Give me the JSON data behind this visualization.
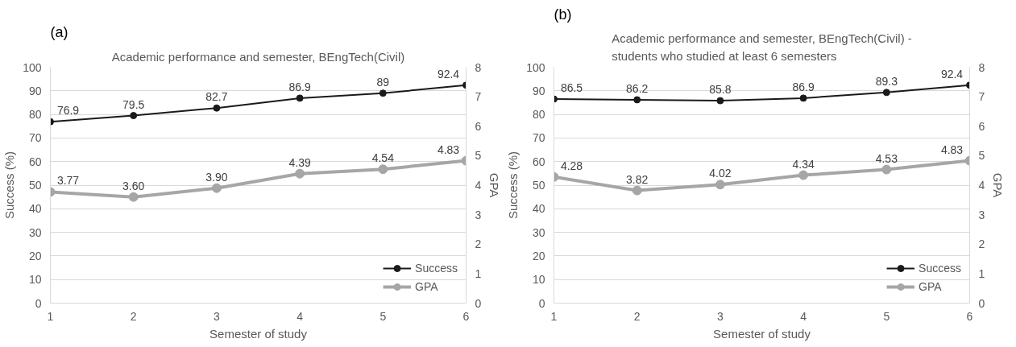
{
  "chart_data": [
    {
      "type": "line",
      "title": "Academic performance and semester, BEngTech(Civil)",
      "xlabel": "Semester of study",
      "ylabel": "Success (%)",
      "y2label": "GPA",
      "annotations": [
        "(a)"
      ],
      "x": [
        1,
        2,
        3,
        4,
        5,
        6
      ],
      "xlim": [
        1,
        6
      ],
      "xticks": [
        1,
        2,
        3,
        4,
        5,
        6
      ],
      "ylim": [
        0,
        100
      ],
      "yticks": [
        0,
        10,
        20,
        30,
        40,
        50,
        60,
        70,
        80,
        90,
        100
      ],
      "y2lim": [
        0,
        8
      ],
      "y2ticks": [
        0,
        1,
        2,
        3,
        4,
        5,
        6,
        7,
        8
      ],
      "grid": "y",
      "legend": "bottom right",
      "marker": "circle",
      "series": [
        {
          "name": "Success",
          "color": "#1a1a1a",
          "values": [
            76.9,
            79.5,
            82.7,
            86.9,
            89,
            92.4
          ],
          "value_labels": [
            "76.9",
            "79.5",
            "82.7",
            "86.9",
            "89",
            "92.4"
          ]
        },
        {
          "name": "GPA",
          "color": "#a6a6a6",
          "axis": "y2",
          "values": [
            3.77,
            3.6,
            3.9,
            4.39,
            4.54,
            4.83
          ],
          "value_labels": [
            "3.77",
            "3.60",
            "3.90",
            "4.39",
            "4.54",
            "4.83"
          ]
        }
      ]
    },
    {
      "type": "line",
      "title": "Academic performance and semester, BEngTech(Civil) -\nstudents who studied at least 6 semesters",
      "xlabel": "Semester of study",
      "ylabel": "Success (%)",
      "y2label": "GPA",
      "annotations": [
        "(b)"
      ],
      "x": [
        1,
        2,
        3,
        4,
        5,
        6
      ],
      "xlim": [
        1,
        6
      ],
      "xticks": [
        1,
        2,
        3,
        4,
        5,
        6
      ],
      "ylim": [
        0,
        100
      ],
      "yticks": [
        0,
        10,
        20,
        30,
        40,
        50,
        60,
        70,
        80,
        90,
        100
      ],
      "y2lim": [
        0,
        8
      ],
      "y2ticks": [
        0,
        1,
        2,
        3,
        4,
        5,
        6,
        7,
        8
      ],
      "grid": "y",
      "legend": "bottom right",
      "marker": "circle",
      "series": [
        {
          "name": "Success",
          "color": "#1a1a1a",
          "values": [
            86.5,
            86.2,
            85.8,
            86.9,
            89.3,
            92.4
          ],
          "value_labels": [
            "86.5",
            "86.2",
            "85.8",
            "86.9",
            "89.3",
            "92.4"
          ]
        },
        {
          "name": "GPA",
          "color": "#a6a6a6",
          "axis": "y2",
          "values": [
            4.28,
            3.82,
            4.02,
            4.34,
            4.53,
            4.83
          ],
          "value_labels": [
            "4.28",
            "3.82",
            "4.02",
            "4.34",
            "4.53",
            "4.83"
          ]
        }
      ]
    }
  ]
}
